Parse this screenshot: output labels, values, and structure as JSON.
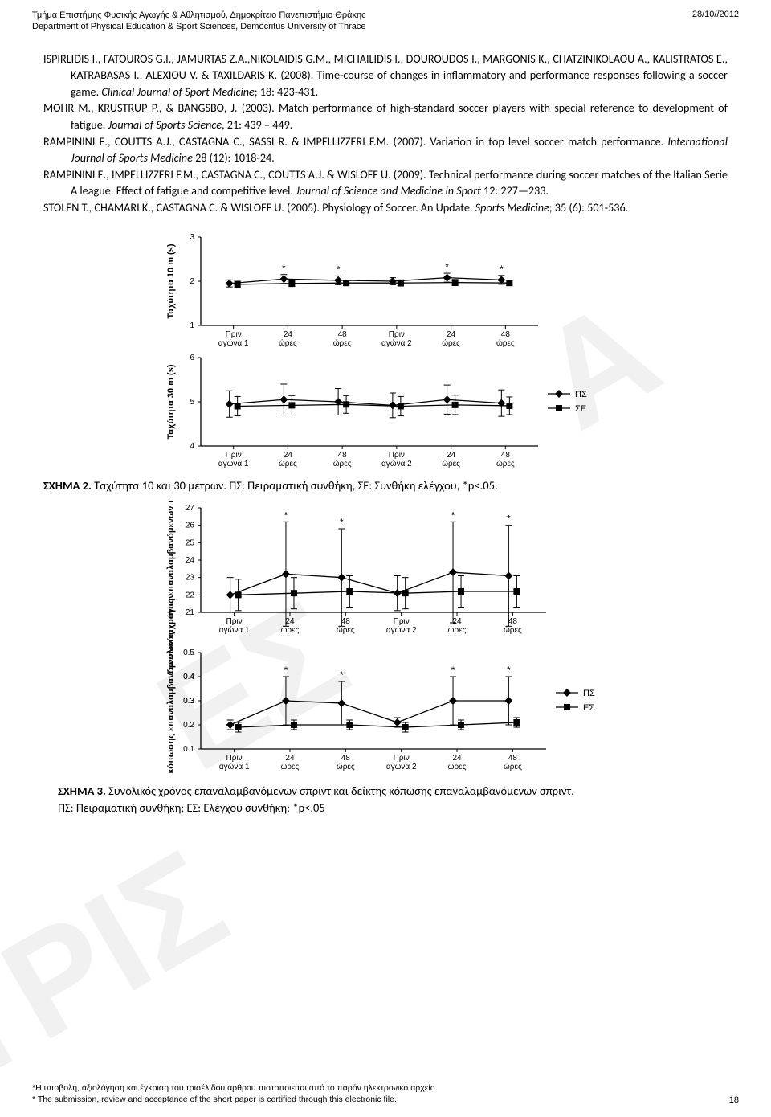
{
  "header": {
    "line1_gr": "Τμήμα Επιστήμης Φυσικής Αγωγής & Αθλητισμού, Δημοκρίτειο Πανεπιστήμιο Θράκης",
    "line2_en": "Department of Physical Education & Sport Sciences, Democritus University of Thrace",
    "date": "28/10//2012"
  },
  "watermark": {
    "wm1": "Α",
    "wm2": "ΕΣ",
    "wm3": "ΤΡΙΣ"
  },
  "refs": [
    {
      "authors": "ISPIRLIDIS I., FATOUROS G.I., JAMURTAS Z.A.,NIKOLAIDIS G.M., MICHAILIDIS I., DOUROUDOS I., MARGONIS K., CHATZINIKOLAOU A., KALISTRATOS E., KATRABASAS I., ALEXIOU V. & TAXILDARIS K. (2008). Time-course of changes in inflammatory and performance responses following a soccer game. ",
      "journal": "Clinical Journal of Sport Medicine",
      "tail": "; 18: 423-431."
    },
    {
      "authors": "MOHR M., KRUSTRUP P., & BANGSBO, J. (2003). Match performance of high-standard soccer players with special reference to development of fatigue. ",
      "journal": "Journal of Sports Science",
      "tail": ", 21: 439 – 449."
    },
    {
      "authors": "RAMPININI E., COUTTS A.J., CASTAGNA C., SASSI R. & IMPELLIZZERI F.M. (2007). Variation in top level soccer match performance. ",
      "journal": "International Journal of Sports Medicine",
      "tail": " 28 (12): 1018-24."
    },
    {
      "authors": "RAMPININI E., IMPELLIZZERI F.M., CASTAGNA C., COUTTS A.J. & WISLOFF U. (2009). Technical performance during soccer matches of the Italian Serie A league: Effect of fatigue and competitive level. ",
      "journal": "Journal of Science and Medicine in Sport",
      "tail": " 12:  227—233."
    },
    {
      "authors": "STOLEN T., CHAMARI K., CASTAGNA C. & WISLOFF U. (2005). Physiology of Soccer. An Update. ",
      "journal": "Sports Medicine",
      "tail": "; 35 (6): 501-536."
    }
  ],
  "fig2": {
    "caption_bold": "ΣΧΗΜΑ 2.",
    "caption_rest": " Ταχύτητα 10 και 30 μέτρων. ΠΣ: Πειραματική συνθήκη, ΣΕ: Συνθήκη ελέγχου, *p<.05.",
    "panel_top": {
      "ylabel": "Ταχύτητα 10 m (s)",
      "ylim": [
        1,
        3
      ],
      "yticks": [
        1,
        2,
        3
      ],
      "categories": [
        "Πριν αγώνα 1",
        "24 ώρες",
        "48 ώρες",
        "Πριν αγώνα 2",
        "24 ώρες",
        "48 ώρες"
      ],
      "series": [
        {
          "name": "ΠΣ",
          "color": "#000000",
          "values": [
            1.95,
            2.05,
            2.02,
            2.0,
            2.08,
            2.03
          ],
          "errs": [
            0.08,
            0.1,
            0.1,
            0.08,
            0.1,
            0.1
          ],
          "stars": [
            false,
            true,
            true,
            false,
            true,
            true
          ]
        },
        {
          "name": "ΣΕ",
          "color": "#000000",
          "values": [
            1.93,
            1.95,
            1.96,
            1.96,
            1.97,
            1.96
          ],
          "errs": [
            0.07,
            0.07,
            0.06,
            0.07,
            0.07,
            0.06
          ],
          "stars": [
            false,
            false,
            false,
            false,
            false,
            false
          ]
        }
      ]
    },
    "panel_bottom": {
      "ylabel": "Ταχύτητα 30 m (s)",
      "ylim": [
        4,
        6
      ],
      "yticks": [
        4,
        5,
        6
      ],
      "categories": [
        "Πριν αγώνα 1",
        "24 ώρες",
        "48 ώρες",
        "Πριν αγώνα 2",
        "24 ώρες",
        "48 ώρες"
      ],
      "series": [
        {
          "name": "ΠΣ",
          "color": "#000000",
          "values": [
            4.95,
            5.05,
            5.0,
            4.92,
            5.05,
            4.97
          ],
          "errs": [
            0.3,
            0.35,
            0.3,
            0.28,
            0.33,
            0.3
          ]
        },
        {
          "name": "ΣΕ",
          "color": "#000000",
          "values": [
            4.9,
            4.92,
            4.94,
            4.9,
            4.93,
            4.91
          ],
          "errs": [
            0.22,
            0.22,
            0.2,
            0.22,
            0.22,
            0.2
          ]
        }
      ],
      "legend": [
        "ΠΣ",
        "ΣΕ"
      ]
    }
  },
  "fig3": {
    "caption_bold": "ΣΧΗΜΑ 3.",
    "caption_line1": " Συνολικός χρόνος επαναλαμβανόμενων σπριντ  και δείκτης κόπωσης επαναλαμβανόμενων σπριντ.",
    "caption_line2": "ΠΣ: Πειραματική συνθήκη; ΕΣ: Ελέγχου συνθήκη; *p<.05",
    "panel_top": {
      "ylabel": "Συνολικός χρόνος επαναλαμβανόμενων ταχυτήτων (s)",
      "ylim": [
        21,
        27
      ],
      "yticks": [
        21,
        22,
        23,
        24,
        25,
        26,
        27
      ],
      "categories": [
        "Πριν αγώνα 1",
        "24 ώρες",
        "48 ώρες",
        "Πριν αγώνα 2",
        "24 ώρες",
        "48 ώρες"
      ],
      "series": [
        {
          "name": "ΠΣ",
          "values": [
            22.0,
            23.2,
            23.0,
            22.1,
            23.3,
            23.1
          ],
          "errs": [
            1.0,
            3.0,
            2.8,
            1.0,
            2.9,
            2.9
          ],
          "stars": [
            false,
            true,
            true,
            false,
            true,
            true
          ]
        },
        {
          "name": "ΕΣ",
          "values": [
            22.0,
            22.1,
            22.2,
            22.1,
            22.2,
            22.2
          ],
          "errs": [
            0.9,
            0.9,
            0.9,
            0.9,
            0.9,
            0.9
          ],
          "stars": [
            false,
            false,
            false,
            false,
            false,
            false
          ]
        }
      ]
    },
    "panel_bottom": {
      "ylabel": "Δείκτης κόπωσης επαναλαμβανόμενων ταχυτήτων",
      "ylim": [
        0.1,
        0.5
      ],
      "yticks": [
        0.1,
        0.2,
        0.3,
        0.3,
        0.4,
        0.4,
        0.5
      ],
      "categories": [
        "Πριν αγώνα 1",
        "24 ώρες",
        "48 ώρες",
        "Πριν αγώνα 2",
        "24 ώρες",
        "48 ώρες"
      ],
      "series": [
        {
          "name": "ΠΣ",
          "values": [
            0.2,
            0.3,
            0.29,
            0.21,
            0.3,
            0.3
          ],
          "errs": [
            0.02,
            0.1,
            0.09,
            0.02,
            0.1,
            0.1
          ],
          "stars": [
            false,
            true,
            true,
            false,
            true,
            true
          ]
        },
        {
          "name": "ΕΣ",
          "values": [
            0.19,
            0.2,
            0.2,
            0.19,
            0.2,
            0.21
          ],
          "errs": [
            0.02,
            0.02,
            0.02,
            0.02,
            0.02,
            0.02
          ],
          "stars": [
            false,
            false,
            false,
            false,
            false,
            false
          ]
        }
      ],
      "legend": [
        "ΠΣ",
        "ΕΣ"
      ]
    }
  },
  "footer": {
    "line1_gr": "*Η υποβολή, αξιολόγηση και έγκριση του τρισέλιδου άρθρου πιστοποιείται από το παρόν ηλεκτρονικό αρχείο.",
    "line2_en": "* The submission, review and acceptance of the short paper is certified through this electronic file.",
    "page": "18"
  },
  "style": {
    "axis_color": "#000000",
    "error_cap": 4,
    "marker_size": 4,
    "line_width": 1.3
  }
}
